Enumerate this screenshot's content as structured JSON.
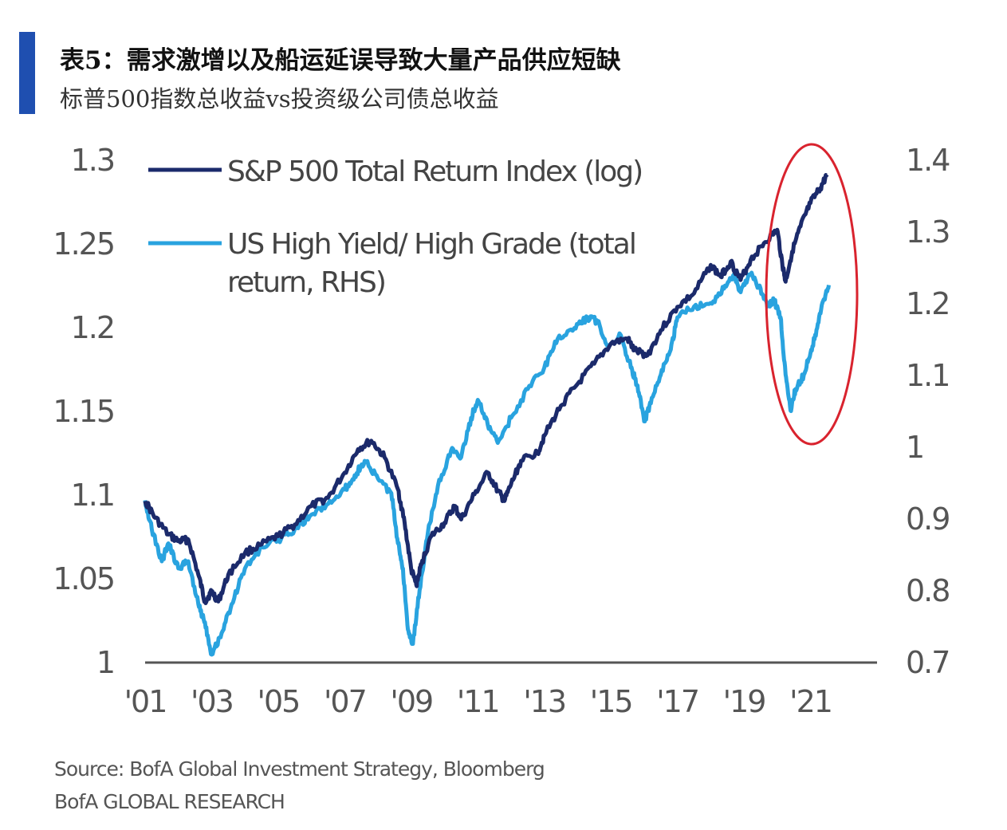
{
  "header": {
    "title": "表5：需求激增以及船运延误导致大量产品供应短缺",
    "subtitle": "标普500指数总收益vs投资级公司债总收益",
    "accent_color": "#1f4fb0"
  },
  "chart_data": {
    "type": "line",
    "x_ticks": [
      "'01",
      "'03",
      "'05",
      "'07",
      "'09",
      "'11",
      "'13",
      "'15",
      "'17",
      "'19",
      "'21"
    ],
    "y_left": {
      "ticks": [
        "1",
        "1.05",
        "1.1",
        "1.15",
        "1.2",
        "1.25",
        "1.3"
      ],
      "range": [
        1.0,
        1.3
      ]
    },
    "y_right": {
      "ticks": [
        "0.7",
        "0.8",
        "0.9",
        "1",
        "1.1",
        "1.2",
        "1.3",
        "1.4"
      ],
      "range": [
        0.7,
        1.4
      ]
    },
    "series": [
      {
        "name": "S&P 500 Total Return Index (log)",
        "axis": "left",
        "color": "#1b2a6b",
        "points": [
          [
            2001.0,
            1.096
          ],
          [
            2001.3,
            1.086
          ],
          [
            2001.7,
            1.076
          ],
          [
            2002.0,
            1.072
          ],
          [
            2002.3,
            1.073
          ],
          [
            2002.6,
            1.052
          ],
          [
            2002.8,
            1.036
          ],
          [
            2003.0,
            1.042
          ],
          [
            2003.2,
            1.036
          ],
          [
            2003.5,
            1.052
          ],
          [
            2004.0,
            1.065
          ],
          [
            2004.5,
            1.07
          ],
          [
            2005.0,
            1.075
          ],
          [
            2005.5,
            1.082
          ],
          [
            2006.0,
            1.093
          ],
          [
            2006.5,
            1.098
          ],
          [
            2007.0,
            1.113
          ],
          [
            2007.4,
            1.127
          ],
          [
            2007.8,
            1.132
          ],
          [
            2008.2,
            1.122
          ],
          [
            2008.6,
            1.103
          ],
          [
            2008.8,
            1.083
          ],
          [
            2009.0,
            1.055
          ],
          [
            2009.15,
            1.046
          ],
          [
            2009.3,
            1.058
          ],
          [
            2009.6,
            1.075
          ],
          [
            2010.0,
            1.083
          ],
          [
            2010.3,
            1.093
          ],
          [
            2010.5,
            1.085
          ],
          [
            2010.9,
            1.1
          ],
          [
            2011.3,
            1.113
          ],
          [
            2011.6,
            1.102
          ],
          [
            2011.8,
            1.096
          ],
          [
            2012.0,
            1.106
          ],
          [
            2012.3,
            1.12
          ],
          [
            2012.8,
            1.125
          ],
          [
            2013.0,
            1.135
          ],
          [
            2013.5,
            1.153
          ],
          [
            2014.0,
            1.166
          ],
          [
            2014.5,
            1.178
          ],
          [
            2015.0,
            1.19
          ],
          [
            2015.5,
            1.193
          ],
          [
            2015.7,
            1.186
          ],
          [
            2016.1,
            1.183
          ],
          [
            2016.5,
            1.198
          ],
          [
            2017.0,
            1.212
          ],
          [
            2017.5,
            1.22
          ],
          [
            2018.0,
            1.237
          ],
          [
            2018.3,
            1.23
          ],
          [
            2018.6,
            1.239
          ],
          [
            2018.9,
            1.228
          ],
          [
            2019.2,
            1.24
          ],
          [
            2019.6,
            1.25
          ],
          [
            2020.0,
            1.258
          ],
          [
            2020.15,
            1.238
          ],
          [
            2020.25,
            1.227
          ],
          [
            2020.45,
            1.245
          ],
          [
            2020.7,
            1.26
          ],
          [
            2021.0,
            1.274
          ],
          [
            2021.3,
            1.283
          ],
          [
            2021.5,
            1.291
          ]
        ]
      },
      {
        "name": "US High Yield/ High Grade (total return, RHS)",
        "axis": "right",
        "color": "#29a3df",
        "points": [
          [
            2001.0,
            0.925
          ],
          [
            2001.2,
            0.885
          ],
          [
            2001.5,
            0.84
          ],
          [
            2001.7,
            0.865
          ],
          [
            2002.0,
            0.83
          ],
          [
            2002.3,
            0.84
          ],
          [
            2002.6,
            0.78
          ],
          [
            2002.8,
            0.755
          ],
          [
            2003.0,
            0.71
          ],
          [
            2003.3,
            0.74
          ],
          [
            2003.6,
            0.78
          ],
          [
            2004.0,
            0.83
          ],
          [
            2004.5,
            0.86
          ],
          [
            2005.0,
            0.87
          ],
          [
            2005.5,
            0.885
          ],
          [
            2006.0,
            0.905
          ],
          [
            2006.5,
            0.92
          ],
          [
            2007.0,
            0.94
          ],
          [
            2007.3,
            0.96
          ],
          [
            2007.6,
            0.98
          ],
          [
            2008.0,
            0.955
          ],
          [
            2008.4,
            0.935
          ],
          [
            2008.6,
            0.865
          ],
          [
            2008.75,
            0.83
          ],
          [
            2008.9,
            0.745
          ],
          [
            2009.05,
            0.725
          ],
          [
            2009.25,
            0.8
          ],
          [
            2009.5,
            0.88
          ],
          [
            2009.8,
            0.945
          ],
          [
            2010.2,
            0.995
          ],
          [
            2010.5,
            0.985
          ],
          [
            2010.8,
            1.04
          ],
          [
            2011.0,
            1.065
          ],
          [
            2011.3,
            1.03
          ],
          [
            2011.6,
            1.005
          ],
          [
            2012.0,
            1.04
          ],
          [
            2012.5,
            1.08
          ],
          [
            2013.0,
            1.11
          ],
          [
            2013.4,
            1.15
          ],
          [
            2013.9,
            1.165
          ],
          [
            2014.3,
            1.18
          ],
          [
            2014.6,
            1.175
          ],
          [
            2014.9,
            1.14
          ],
          [
            2015.3,
            1.155
          ],
          [
            2015.6,
            1.11
          ],
          [
            2015.8,
            1.085
          ],
          [
            2016.0,
            1.035
          ],
          [
            2016.2,
            1.06
          ],
          [
            2016.5,
            1.1
          ],
          [
            2016.8,
            1.135
          ],
          [
            2017.0,
            1.18
          ],
          [
            2017.5,
            1.195
          ],
          [
            2018.0,
            1.2
          ],
          [
            2018.4,
            1.22
          ],
          [
            2018.7,
            1.24
          ],
          [
            2018.9,
            1.215
          ],
          [
            2019.2,
            1.24
          ],
          [
            2019.5,
            1.22
          ],
          [
            2019.7,
            1.195
          ],
          [
            2019.9,
            1.205
          ],
          [
            2020.1,
            1.18
          ],
          [
            2020.25,
            1.1
          ],
          [
            2020.4,
            1.05
          ],
          [
            2020.55,
            1.08
          ],
          [
            2020.8,
            1.1
          ],
          [
            2021.0,
            1.13
          ],
          [
            2021.2,
            1.165
          ],
          [
            2021.4,
            1.205
          ],
          [
            2021.55,
            1.225
          ]
        ]
      }
    ],
    "annotation": {
      "type": "ellipse",
      "color": "#d9232e"
    },
    "grid": false,
    "legend_position": "top-left",
    "x_range": [
      2001,
      2023
    ]
  },
  "source": "Source:  BofA Global Investment Strategy, Bloomberg",
  "footer": "BofA GLOBAL RESEARCH"
}
